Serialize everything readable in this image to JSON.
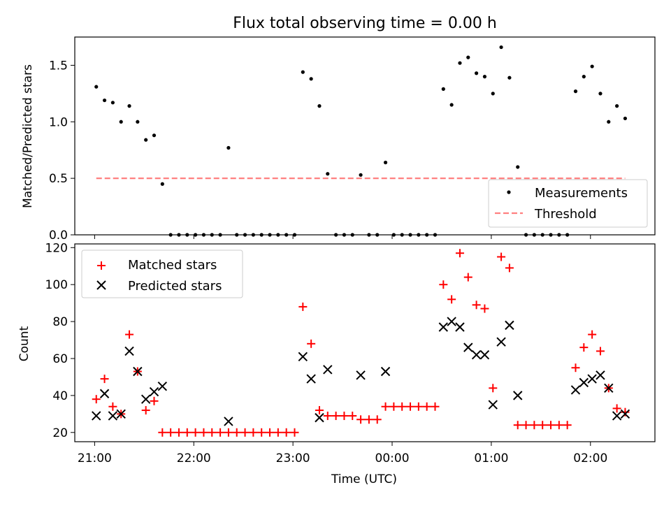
{
  "chart_data": [
    {
      "type": "scatter",
      "title": "Flux total observing time = 0.00 h",
      "ylabel": "Matched/Predicted stars",
      "xlabel": "",
      "ylim": [
        0,
        1.75
      ],
      "yticks": [
        "0.0",
        "0.5",
        "1.0",
        "1.5"
      ],
      "ytick_values": [
        0,
        0.5,
        1.0,
        1.5
      ],
      "legend_position": "lower-right",
      "series": [
        {
          "name": "Measurements",
          "marker": "dot",
          "color": "#000000",
          "points": [
            [
              "21:01",
              1.31
            ],
            [
              "21:06",
              1.19
            ],
            [
              "21:11",
              1.17
            ],
            [
              "21:16",
              1.0
            ],
            [
              "21:21",
              1.14
            ],
            [
              "21:26",
              1.0
            ],
            [
              "21:31",
              0.84
            ],
            [
              "21:36",
              0.88
            ],
            [
              "21:41",
              0.45
            ],
            [
              "21:46",
              0
            ],
            [
              "21:51",
              0
            ],
            [
              "21:56",
              0
            ],
            [
              "22:01",
              0
            ],
            [
              "22:06",
              0
            ],
            [
              "22:11",
              0
            ],
            [
              "22:16",
              0
            ],
            [
              "22:21",
              0.77
            ],
            [
              "22:26",
              0
            ],
            [
              "22:31",
              0
            ],
            [
              "22:36",
              0
            ],
            [
              "22:41",
              0
            ],
            [
              "22:46",
              0
            ],
            [
              "22:51",
              0
            ],
            [
              "22:56",
              0
            ],
            [
              "23:01",
              0
            ],
            [
              "23:06",
              1.44
            ],
            [
              "23:11",
              1.38
            ],
            [
              "23:16",
              1.14
            ],
            [
              "23:21",
              0.54
            ],
            [
              "23:26",
              0
            ],
            [
              "23:31",
              0
            ],
            [
              "23:36",
              0
            ],
            [
              "23:41",
              0.53
            ],
            [
              "23:46",
              0
            ],
            [
              "23:51",
              0
            ],
            [
              "23:56",
              0.64
            ],
            [
              "00:01",
              0
            ],
            [
              "00:06",
              0
            ],
            [
              "00:11",
              0
            ],
            [
              "00:16",
              0
            ],
            [
              "00:21",
              0
            ],
            [
              "00:26",
              0
            ],
            [
              "00:31",
              1.29
            ],
            [
              "00:36",
              1.15
            ],
            [
              "00:41",
              1.52
            ],
            [
              "00:46",
              1.57
            ],
            [
              "00:51",
              1.43
            ],
            [
              "00:56",
              1.4
            ],
            [
              "01:01",
              1.25
            ],
            [
              "01:06",
              1.66
            ],
            [
              "01:11",
              1.39
            ],
            [
              "01:16",
              0.6
            ],
            [
              "01:21",
              0
            ],
            [
              "01:26",
              0
            ],
            [
              "01:31",
              0
            ],
            [
              "01:36",
              0
            ],
            [
              "01:41",
              0
            ],
            [
              "01:46",
              0
            ],
            [
              "01:51",
              1.27
            ],
            [
              "01:56",
              1.4
            ],
            [
              "02:01",
              1.49
            ],
            [
              "02:06",
              1.25
            ],
            [
              "02:11",
              1.0
            ],
            [
              "02:16",
              1.14
            ],
            [
              "02:21",
              1.03
            ]
          ]
        },
        {
          "name": "Threshold",
          "marker": "dashed-line",
          "color": "#ff8080",
          "points": [
            [
              "21:01",
              0.5
            ],
            [
              "02:21",
              0.5
            ]
          ]
        }
      ]
    },
    {
      "type": "scatter",
      "title": "",
      "ylabel": "Count",
      "xlabel": "Time (UTC)",
      "ylim": [
        15,
        122
      ],
      "yticks": [
        "20",
        "40",
        "60",
        "80",
        "100",
        "120"
      ],
      "ytick_values": [
        20,
        40,
        60,
        80,
        100,
        120
      ],
      "x_range": [
        "20:48",
        "02:39"
      ],
      "xticks": [
        "21:00",
        "22:00",
        "23:00",
        "00:00",
        "01:00",
        "02:00"
      ],
      "legend_position": "upper-left",
      "series": [
        {
          "name": "Matched stars",
          "marker": "plus",
          "color": "#ff0000",
          "points": [
            [
              "21:01",
              38
            ],
            [
              "21:06",
              49
            ],
            [
              "21:11",
              34
            ],
            [
              "21:16",
              30
            ],
            [
              "21:21",
              73
            ],
            [
              "21:26",
              53
            ],
            [
              "21:31",
              32
            ],
            [
              "21:36",
              37
            ],
            [
              "21:41",
              20
            ],
            [
              "21:46",
              20
            ],
            [
              "21:51",
              20
            ],
            [
              "21:56",
              20
            ],
            [
              "22:01",
              20
            ],
            [
              "22:06",
              20
            ],
            [
              "22:11",
              20
            ],
            [
              "22:16",
              20
            ],
            [
              "22:21",
              20
            ],
            [
              "22:26",
              20
            ],
            [
              "22:31",
              20
            ],
            [
              "22:36",
              20
            ],
            [
              "22:41",
              20
            ],
            [
              "22:46",
              20
            ],
            [
              "22:51",
              20
            ],
            [
              "22:56",
              20
            ],
            [
              "23:01",
              20
            ],
            [
              "23:06",
              88
            ],
            [
              "23:11",
              68
            ],
            [
              "23:16",
              32
            ],
            [
              "23:21",
              29
            ],
            [
              "23:26",
              29
            ],
            [
              "23:31",
              29
            ],
            [
              "23:36",
              29
            ],
            [
              "23:41",
              27
            ],
            [
              "23:46",
              27
            ],
            [
              "23:51",
              27
            ],
            [
              "23:56",
              34
            ],
            [
              "00:01",
              34
            ],
            [
              "00:06",
              34
            ],
            [
              "00:11",
              34
            ],
            [
              "00:16",
              34
            ],
            [
              "00:21",
              34
            ],
            [
              "00:26",
              34
            ],
            [
              "00:31",
              100
            ],
            [
              "00:36",
              92
            ],
            [
              "00:41",
              117
            ],
            [
              "00:46",
              104
            ],
            [
              "00:51",
              89
            ],
            [
              "00:56",
              87
            ],
            [
              "01:01",
              44
            ],
            [
              "01:06",
              115
            ],
            [
              "01:11",
              109
            ],
            [
              "01:16",
              24
            ],
            [
              "01:21",
              24
            ],
            [
              "01:26",
              24
            ],
            [
              "01:31",
              24
            ],
            [
              "01:36",
              24
            ],
            [
              "01:41",
              24
            ],
            [
              "01:46",
              24
            ],
            [
              "01:51",
              55
            ],
            [
              "01:56",
              66
            ],
            [
              "02:01",
              73
            ],
            [
              "02:06",
              64
            ],
            [
              "02:11",
              44
            ],
            [
              "02:16",
              33
            ],
            [
              "02:21",
              31
            ]
          ]
        },
        {
          "name": "Predicted stars",
          "marker": "x",
          "color": "#000000",
          "points": [
            [
              "21:01",
              29
            ],
            [
              "21:06",
              41
            ],
            [
              "21:11",
              29
            ],
            [
              "21:16",
              30
            ],
            [
              "21:21",
              64
            ],
            [
              "21:26",
              53
            ],
            [
              "21:31",
              38
            ],
            [
              "21:36",
              42
            ],
            [
              "21:41",
              45
            ],
            [
              "22:21",
              26
            ],
            [
              "23:06",
              61
            ],
            [
              "23:11",
              49
            ],
            [
              "23:16",
              28
            ],
            [
              "23:21",
              54
            ],
            [
              "23:41",
              51
            ],
            [
              "23:56",
              53
            ],
            [
              "00:31",
              77
            ],
            [
              "00:36",
              80
            ],
            [
              "00:41",
              77
            ],
            [
              "00:46",
              66
            ],
            [
              "00:51",
              62
            ],
            [
              "00:56",
              62
            ],
            [
              "01:01",
              35
            ],
            [
              "01:06",
              69
            ],
            [
              "01:11",
              78
            ],
            [
              "01:16",
              40
            ],
            [
              "01:51",
              43
            ],
            [
              "01:56",
              47
            ],
            [
              "02:01",
              49
            ],
            [
              "02:06",
              51
            ],
            [
              "02:11",
              44
            ],
            [
              "02:16",
              29
            ],
            [
              "02:21",
              30
            ]
          ]
        }
      ]
    }
  ]
}
